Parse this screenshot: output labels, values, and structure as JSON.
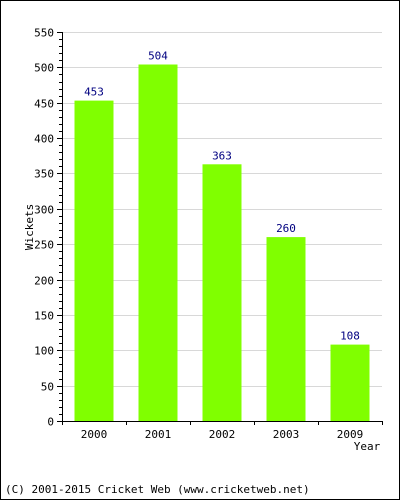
{
  "chart_data": {
    "type": "bar",
    "categories": [
      "2000",
      "2001",
      "2002",
      "2003",
      "2009"
    ],
    "values": [
      453,
      504,
      363,
      260,
      108
    ],
    "data_labels": [
      "453",
      "504",
      "363",
      "260",
      "108"
    ],
    "title": "",
    "xlabel": "Year",
    "ylabel": "Wickets",
    "ylim": [
      0,
      550
    ],
    "yticks": [
      "0",
      "50",
      "100",
      "150",
      "200",
      "250",
      "300",
      "350",
      "400",
      "450",
      "500",
      "550"
    ],
    "grid": true,
    "bar_color": "#80ff00",
    "label_color": "#000080",
    "grid_color": "#d8d8d8"
  },
  "footer": {
    "copyright": "(C) 2001-2015 Cricket Web (www.cricketweb.net)"
  }
}
